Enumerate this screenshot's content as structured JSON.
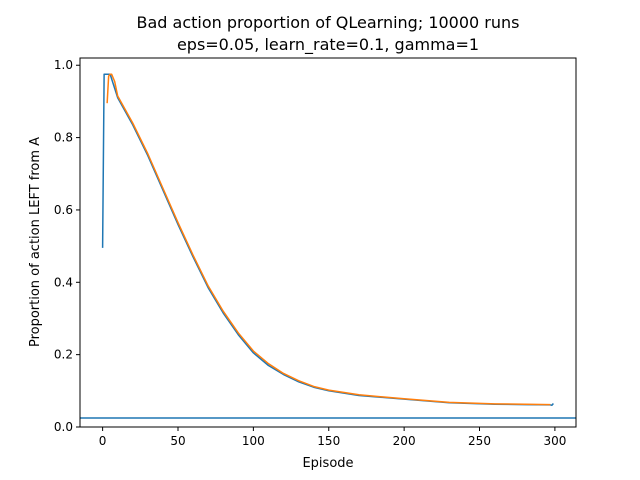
{
  "chart_data": {
    "type": "line",
    "title_line1": "Bad action proportion of QLearning; 10000 runs",
    "title_line2": "eps=0.05, learn_rate=0.1, gamma=1",
    "xlabel": "Episode",
    "ylabel": "Proportion of action LEFT from A",
    "xlim": [
      -15,
      314
    ],
    "ylim": [
      0,
      1.02
    ],
    "xticks": [
      0,
      50,
      100,
      150,
      200,
      250,
      300
    ],
    "yticks": [
      0.0,
      0.2,
      0.4,
      0.6,
      0.8,
      1.0
    ],
    "xtick_labels": [
      "0",
      "50",
      "100",
      "150",
      "200",
      "250",
      "300"
    ],
    "ytick_labels": [
      "0.0",
      "0.2",
      "0.4",
      "0.6",
      "0.8",
      "1.0"
    ],
    "grid": false,
    "series": [
      {
        "color": "#1f77b4",
        "x": [
          0,
          1,
          5,
          10,
          20,
          30,
          40,
          50,
          60,
          70,
          80,
          90,
          100,
          110,
          120,
          130,
          140,
          150,
          170,
          200,
          230,
          260,
          280,
          297,
          298,
          299
        ],
        "y": [
          0.495,
          0.975,
          0.975,
          0.91,
          0.835,
          0.75,
          0.655,
          0.56,
          0.47,
          0.385,
          0.315,
          0.255,
          0.205,
          0.17,
          0.145,
          0.125,
          0.11,
          0.1,
          0.087,
          0.077,
          0.067,
          0.063,
          0.062,
          0.061,
          0.06,
          0.065
        ]
      },
      {
        "color": "#ff7f0e",
        "x": [
          3,
          4,
          5,
          6,
          8,
          10,
          20,
          30,
          40,
          50,
          60,
          70,
          80,
          90,
          100,
          110,
          120,
          130,
          140,
          150,
          170,
          200,
          230,
          260,
          280,
          297
        ],
        "y": [
          0.895,
          0.97,
          0.975,
          0.975,
          0.955,
          0.915,
          0.84,
          0.755,
          0.66,
          0.565,
          0.475,
          0.39,
          0.32,
          0.26,
          0.21,
          0.175,
          0.148,
          0.128,
          0.112,
          0.102,
          0.089,
          0.078,
          0.068,
          0.064,
          0.063,
          0.062
        ]
      }
    ],
    "hlines": [
      {
        "y": 0.025,
        "color": "#1f77b4"
      }
    ]
  }
}
